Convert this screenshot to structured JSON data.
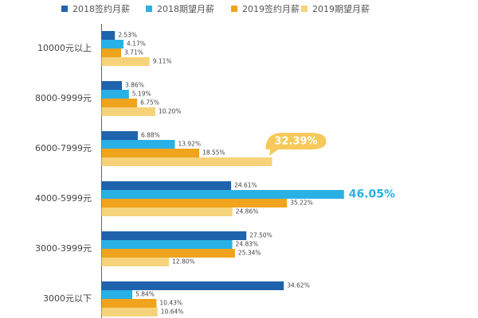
{
  "chart_data": {
    "type": "hbar",
    "categories": [
      "10000元以上",
      "8000-9999元",
      "6000-7999元",
      "4000-5999元",
      "3000-3999元",
      "3000元以下"
    ],
    "series": [
      {
        "name": "2018签约月薪",
        "color": "#1f63ad",
        "values": [
          2.53,
          3.86,
          6.88,
          24.61,
          27.5,
          34.62
        ],
        "value_labels": [
          "2.53%",
          "3.86%",
          "6.88%",
          "24.61%",
          "27.50%",
          "34.62%"
        ]
      },
      {
        "name": "2018期望月薪",
        "color": "#29b1e5",
        "values": [
          4.17,
          5.19,
          13.92,
          46.05,
          24.83,
          5.84
        ],
        "value_labels": [
          "4.17%",
          "5.19%",
          "13.92%",
          "46.05%",
          "24.83%",
          "5.84%"
        ]
      },
      {
        "name": "2019签约月薪",
        "color": "#f0a31c",
        "values": [
          3.71,
          6.75,
          18.55,
          35.22,
          25.34,
          10.43
        ],
        "value_labels": [
          "3.71%",
          "6.75%",
          "18.55%",
          "35.22%",
          "25.34%",
          "10.43%"
        ]
      },
      {
        "name": "2019期望月薪",
        "color": "#f6d27a",
        "values": [
          9.11,
          10.2,
          32.39,
          24.86,
          12.8,
          10.64
        ],
        "value_labels": [
          "9.11%",
          "10.20%",
          "32.39%",
          "24.86%",
          "12.80%",
          "10.64%"
        ]
      }
    ],
    "xlim": [
      0,
      70
    ]
  }
}
